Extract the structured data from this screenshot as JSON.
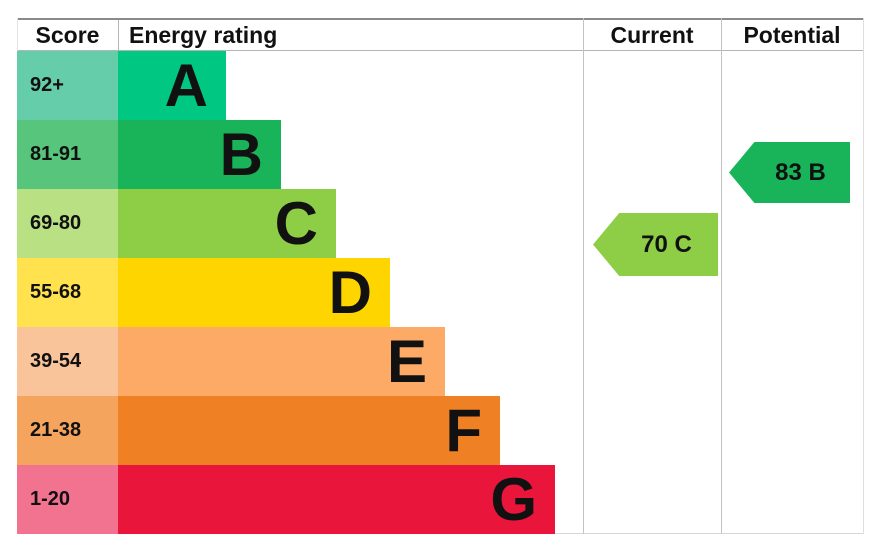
{
  "header": {
    "score": "Score",
    "energy_rating": "Energy rating",
    "current": "Current",
    "potential": "Potential"
  },
  "bands": [
    {
      "letter": "A",
      "score": "92+",
      "color": "#00c781",
      "tint": "#65cda9"
    },
    {
      "letter": "B",
      "score": "81-91",
      "color": "#19b459",
      "tint": "#58c57c"
    },
    {
      "letter": "C",
      "score": "69-80",
      "color": "#8dce46",
      "tint": "#b9e183"
    },
    {
      "letter": "D",
      "score": "55-68",
      "color": "#ffd500",
      "tint": "#ffe24e"
    },
    {
      "letter": "E",
      "score": "39-54",
      "color": "#fcaa65",
      "tint": "#f9c49a"
    },
    {
      "letter": "F",
      "score": "21-38",
      "color": "#ef8023",
      "tint": "#f4a45c"
    },
    {
      "letter": "G",
      "score": "1-20",
      "color": "#e9153b",
      "tint": "#f2738f"
    }
  ],
  "current": {
    "label": "70 C",
    "value": 70,
    "band": "C",
    "color": "#8dce46"
  },
  "potential": {
    "label": "83 B",
    "value": 83,
    "band": "B",
    "color": "#19b459"
  },
  "chart_data": {
    "type": "bar",
    "orientation": "horizontal",
    "columns": [
      "Score",
      "Energy rating",
      "Current",
      "Potential"
    ],
    "categories": [
      "A",
      "B",
      "C",
      "D",
      "E",
      "F",
      "G"
    ],
    "score_ranges": [
      "92+",
      "81-91",
      "69-80",
      "55-68",
      "39-54",
      "21-38",
      "1-20"
    ],
    "band_colors": [
      "#00c781",
      "#19b459",
      "#8dce46",
      "#ffd500",
      "#fcaa65",
      "#ef8023",
      "#e9153b"
    ],
    "bar_relative_lengths": [
      1,
      1.5,
      2,
      2.5,
      3,
      3.5,
      4
    ],
    "current_rating": {
      "value": 70,
      "band": "C",
      "arrow_color": "#8dce46"
    },
    "potential_rating": {
      "value": 83,
      "band": "B",
      "arrow_color": "#19b459"
    },
    "legend_position": "none",
    "grid": false
  }
}
